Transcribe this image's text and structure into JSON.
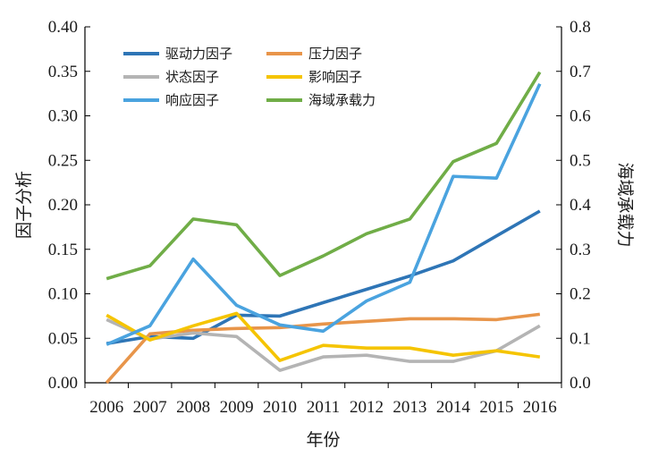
{
  "chart_data": {
    "type": "line",
    "title": "",
    "xlabel": "年份",
    "ylabel": "因子分析",
    "y2label": "海域承载力",
    "x": [
      "2006",
      "2007",
      "2008",
      "2009",
      "2010",
      "2011",
      "2012",
      "2013",
      "2014",
      "2015",
      "2016"
    ],
    "ylim": [
      0,
      0.4
    ],
    "y2lim": [
      0,
      0.8
    ],
    "yticks": [
      "0.00",
      "0.05",
      "0.10",
      "0.15",
      "0.20",
      "0.25",
      "0.30",
      "0.35",
      "0.40"
    ],
    "y2ticks": [
      "0.0",
      "0.1",
      "0.2",
      "0.3",
      "0.4",
      "0.5",
      "0.6",
      "0.7",
      "0.8"
    ],
    "grid": false,
    "legend_position": "top-left",
    "series": [
      {
        "name": "驱动力因子",
        "axis": "left",
        "color": "#2e75b6",
        "values": [
          0.044,
          0.052,
          0.05,
          0.076,
          0.075,
          0.09,
          0.105,
          0.12,
          0.137,
          0.165,
          0.193
        ]
      },
      {
        "name": "压力因子",
        "axis": "left",
        "color": "#e8954a",
        "values": [
          0.0,
          0.055,
          0.059,
          0.061,
          0.062,
          0.066,
          0.069,
          0.072,
          0.072,
          0.071,
          0.077
        ]
      },
      {
        "name": "状态因子",
        "axis": "left",
        "color": "#b4b4b4",
        "values": [
          0.071,
          0.049,
          0.056,
          0.052,
          0.014,
          0.029,
          0.031,
          0.024,
          0.024,
          0.036,
          0.064
        ]
      },
      {
        "name": "影响因子",
        "axis": "left",
        "color": "#f5c400",
        "values": [
          0.076,
          0.048,
          0.064,
          0.078,
          0.025,
          0.042,
          0.039,
          0.039,
          0.031,
          0.036,
          0.029
        ]
      },
      {
        "name": "响应因子",
        "axis": "left",
        "color": "#4aa3df",
        "values": [
          0.043,
          0.064,
          0.139,
          0.087,
          0.065,
          0.058,
          0.092,
          0.113,
          0.232,
          0.23,
          0.336
        ]
      },
      {
        "name": "海域承载力",
        "axis": "right",
        "color": "#70ad47",
        "values": [
          0.234,
          0.263,
          0.368,
          0.355,
          0.241,
          0.285,
          0.335,
          0.368,
          0.497,
          0.538,
          0.698
        ]
      }
    ]
  }
}
